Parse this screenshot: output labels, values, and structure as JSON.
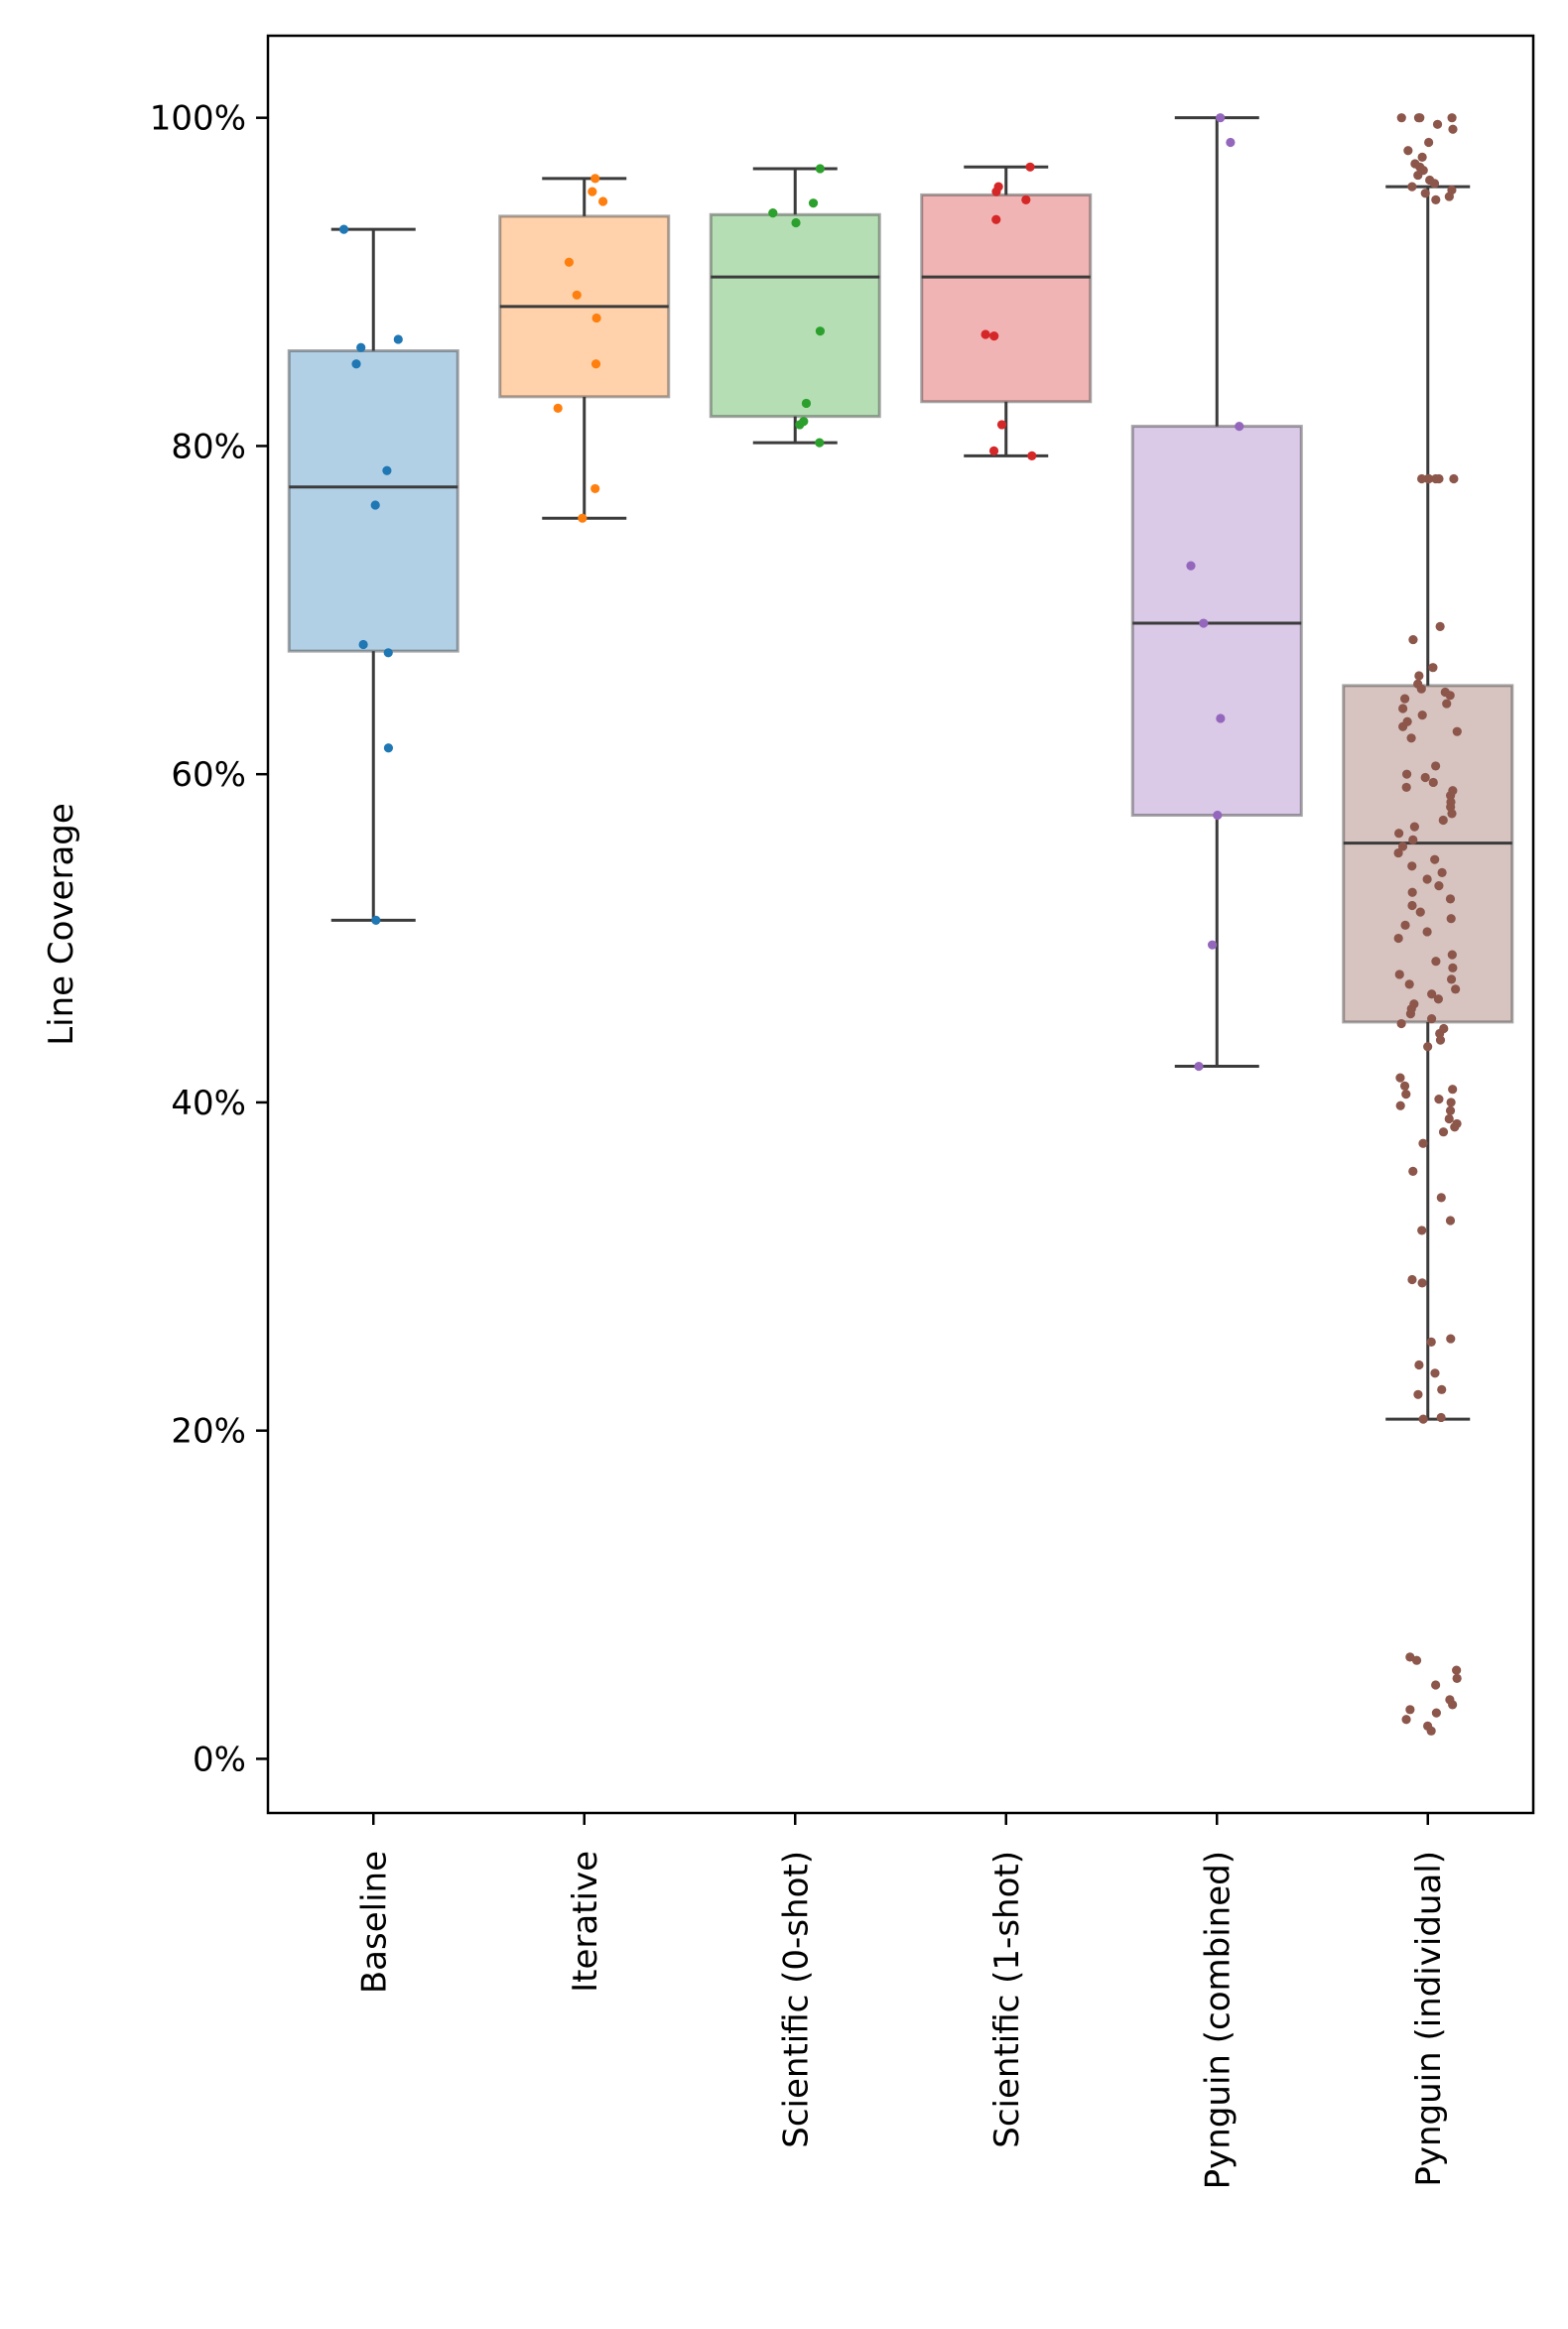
{
  "chart_data": {
    "type": "box",
    "title": "",
    "xlabel": "",
    "ylabel": "Line Coverage",
    "ylim": [
      -3.3,
      105
    ],
    "yticks": [
      {
        "value": 0,
        "label": "0%"
      },
      {
        "value": 20,
        "label": "20%"
      },
      {
        "value": 40,
        "label": "40%"
      },
      {
        "value": 60,
        "label": "60%"
      },
      {
        "value": 80,
        "label": "80%"
      },
      {
        "value": 100,
        "label": "100%"
      }
    ],
    "categories": [
      "Baseline",
      "Iterative",
      "Scientific (0-shot)",
      "Scientific (1-shot)",
      "Pynguin (combined)",
      "Pynguin (individual)"
    ],
    "series": [
      {
        "name": "Baseline",
        "color": "#1f77b4",
        "whisker_low": 51.1,
        "q1": 67.5,
        "median": 77.5,
        "q3": 85.8,
        "whisker_high": 93.2,
        "points": [
          93.2,
          86.5,
          86.0,
          85.0,
          78.5,
          76.4,
          67.9,
          67.4,
          61.6,
          51.1
        ]
      },
      {
        "name": "Iterative",
        "color": "#ff7f0e",
        "whisker_low": 75.6,
        "q1": 83.0,
        "median": 88.5,
        "q3": 94.0,
        "whisker_high": 96.3,
        "points": [
          96.3,
          95.5,
          94.9,
          91.2,
          89.2,
          87.8,
          85.0,
          82.3,
          77.4,
          75.6
        ]
      },
      {
        "name": "Scientific (0-shot)",
        "color": "#2ca02c",
        "whisker_low": 80.2,
        "q1": 81.8,
        "median": 90.3,
        "q3": 94.1,
        "whisker_high": 96.9,
        "points": [
          96.9,
          94.8,
          94.2,
          93.6,
          87.0,
          82.6,
          81.5,
          81.3,
          80.2
        ]
      },
      {
        "name": "Scientific (1-shot)",
        "color": "#d62728",
        "whisker_low": 79.4,
        "q1": 82.7,
        "median": 90.3,
        "q3": 95.3,
        "whisker_high": 97.0,
        "points": [
          97.0,
          95.8,
          95.5,
          95.0,
          93.8,
          86.8,
          86.7,
          81.3,
          79.7,
          79.4
        ]
      },
      {
        "name": "Pynguin (combined)",
        "color": "#9467bd",
        "whisker_low": 42.2,
        "q1": 57.5,
        "median": 69.2,
        "q3": 81.2,
        "whisker_high": 100.0,
        "points": [
          100.0,
          98.5,
          81.2,
          72.7,
          69.2,
          63.4,
          57.5,
          49.6,
          42.2
        ]
      },
      {
        "name": "Pynguin (individual)",
        "color": "#8c564b",
        "whisker_low": 20.7,
        "q1": 44.9,
        "median": 55.8,
        "q3": 65.4,
        "whisker_high": 95.8,
        "points": [
          100,
          100,
          100,
          100,
          99.6,
          99.3,
          98.5,
          98.0,
          97.6,
          97.2,
          97.0,
          96.8,
          96.5,
          96.2,
          96.0,
          95.8,
          95.6,
          95.4,
          95.2,
          95.0,
          78.0,
          78.0,
          78.0,
          78.0,
          78.0,
          78.0,
          69.0,
          68.2,
          66.5,
          66.0,
          65.5,
          65.2,
          65.0,
          64.8,
          64.6,
          64.3,
          64.0,
          63.6,
          63.2,
          62.9,
          62.6,
          62.2,
          60.5,
          60.0,
          59.8,
          59.5,
          59.2,
          59.0,
          58.7,
          58.3,
          58.0,
          57.6,
          57.2,
          56.8,
          56.4,
          56.0,
          55.6,
          55.2,
          54.8,
          54.4,
          54.0,
          53.6,
          53.2,
          52.8,
          52.4,
          52.0,
          51.6,
          51.2,
          50.8,
          50.4,
          50.0,
          49.0,
          48.6,
          48.2,
          47.8,
          47.5,
          47.2,
          46.9,
          46.6,
          46.3,
          46.0,
          45.7,
          45.4,
          45.1,
          44.8,
          44.5,
          44.2,
          43.8,
          43.4,
          41.5,
          41.0,
          40.8,
          40.5,
          40.2,
          40.0,
          39.8,
          39.5,
          39.0,
          38.7,
          38.5,
          38.2,
          37.5,
          35.8,
          34.2,
          32.8,
          32.2,
          29.2,
          29.0,
          25.6,
          25.4,
          24.0,
          23.5,
          22.5,
          22.2,
          20.8,
          20.7,
          6.2,
          6.0,
          5.4,
          4.9,
          4.5,
          3.6,
          3.3,
          3.0,
          2.8,
          2.4,
          2.0,
          1.7
        ]
      }
    ]
  }
}
